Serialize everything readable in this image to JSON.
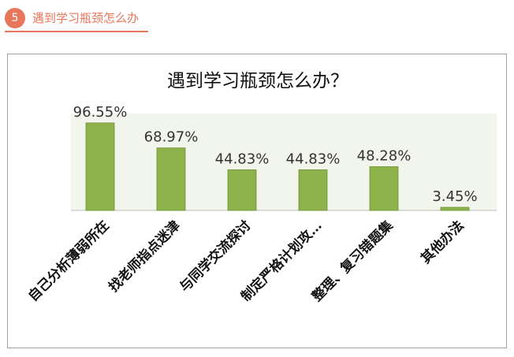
{
  "section": {
    "number": "5",
    "title": "遇到学习瓶颈怎么办"
  },
  "colors": {
    "accent": "#e8765a",
    "bar": "#8db249",
    "plot_bg": "#f2f5ec"
  },
  "chart_data": {
    "type": "bar",
    "title": "遇到学习瓶颈怎么办？",
    "categories": [
      "自己分析薄弱所在",
      "找老师指点迷津",
      "与同学交流探讨",
      "制定严格计划攻…",
      "整理、复习错题集",
      "其他办法"
    ],
    "values": [
      96.55,
      68.97,
      44.83,
      44.83,
      48.28,
      3.45
    ],
    "value_labels": [
      "96.55%",
      "68.97%",
      "44.83%",
      "44.83%",
      "48.28%",
      "3.45%"
    ],
    "unit": "%",
    "ylim": [
      0,
      100
    ],
    "grid": false,
    "legend": "none"
  }
}
